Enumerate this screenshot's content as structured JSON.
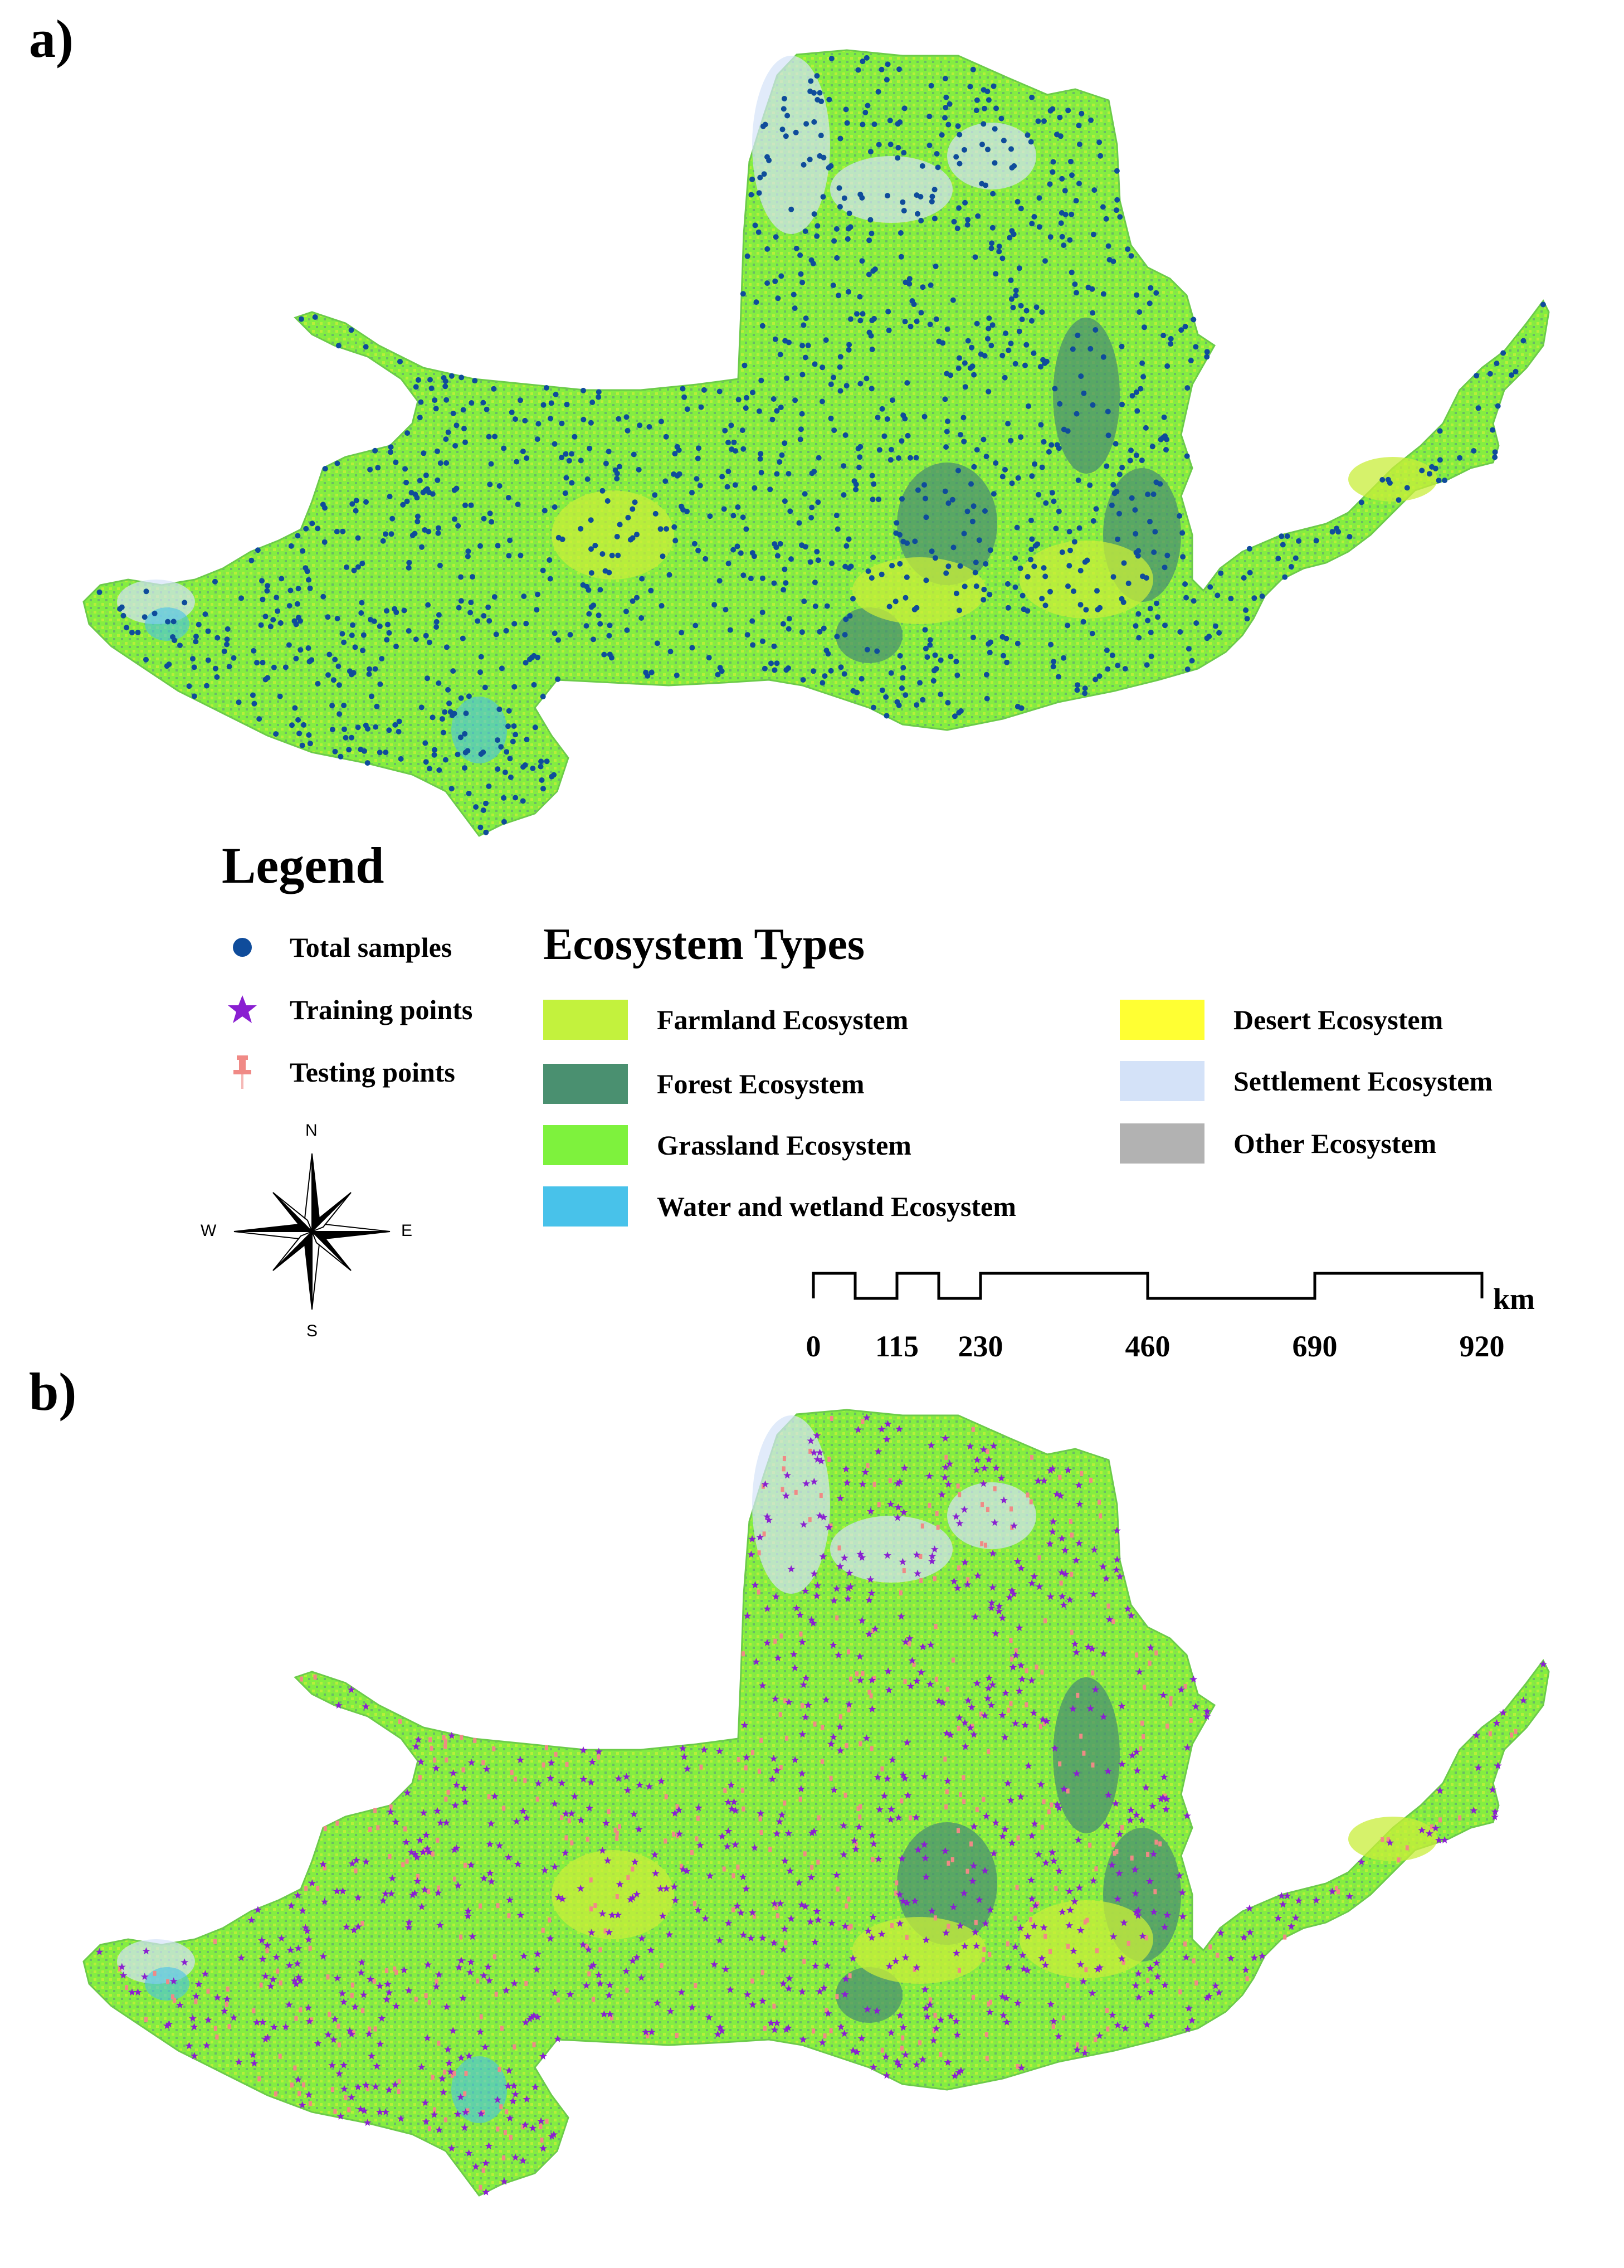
{
  "panels": {
    "a": {
      "label": "a)"
    },
    "b": {
      "label": "b)"
    }
  },
  "legend": {
    "title": "Legend",
    "points": [
      {
        "label": "Total samples",
        "symbol": "circle-dot",
        "color": "#0f4c9b"
      },
      {
        "label": "Training points",
        "symbol": "star",
        "color": "#8a1fd1"
      },
      {
        "label": "Testing points",
        "symbol": "pushpin",
        "color": "#f08a86"
      }
    ]
  },
  "ecosystem": {
    "title": "Ecosystem Types",
    "types": [
      {
        "label": "Farmland Ecosystem",
        "color": "#c3f23d"
      },
      {
        "label": "Forest Ecosystem",
        "color": "#4a9070"
      },
      {
        "label": "Grassland Ecosystem",
        "color": "#7ef23d"
      },
      {
        "label": "Water and wetland Ecosystem",
        "color": "#48c2ea"
      },
      {
        "label": "Desert Ecosystem",
        "color": "#ffff33"
      },
      {
        "label": "Settlement Ecosystem",
        "color": "#d4e2f8"
      },
      {
        "label": "Other Ecosystem",
        "color": "#b2b2b2"
      }
    ]
  },
  "scale_bar": {
    "ticks": [
      "0",
      "115",
      "230",
      "460",
      "690",
      "920"
    ],
    "unit": "km"
  },
  "compass": {
    "n": "N",
    "s": "S",
    "e": "E",
    "w": "W"
  }
}
